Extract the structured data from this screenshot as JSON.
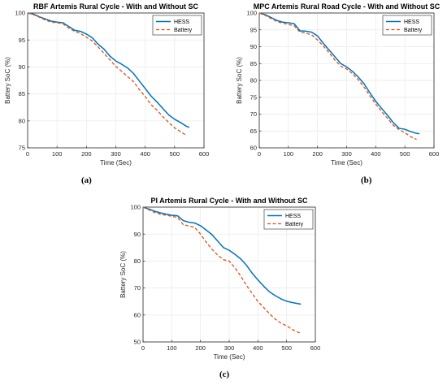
{
  "panel_labels": [
    "(a)",
    "(b)",
    "(c)"
  ],
  "colors": {
    "hess": "#0072BD",
    "battery": "#D95319",
    "axis": "#262626",
    "grid": "#e8e8e8"
  },
  "chart_data": [
    {
      "type": "line",
      "title": "RBF Artemis Rural Cycle - With and Without SC",
      "xlabel": "Time (Sec)",
      "ylabel": "Battery SoC (%)",
      "xlim": [
        0,
        600
      ],
      "ylim": [
        75,
        100
      ],
      "xticks": [
        0,
        100,
        200,
        300,
        400,
        500,
        600
      ],
      "yticks": [
        75,
        80,
        85,
        90,
        95,
        100
      ],
      "legend_position": "top-right",
      "series": [
        {
          "name": "HESS",
          "style": "solid",
          "x": [
            0,
            20,
            40,
            60,
            80,
            100,
            120,
            140,
            160,
            180,
            200,
            220,
            240,
            260,
            280,
            300,
            320,
            340,
            360,
            380,
            400,
            420,
            440,
            460,
            480,
            500,
            520,
            540,
            550
          ],
          "y": [
            100,
            99.8,
            99.3,
            98.9,
            98.5,
            98.3,
            98.2,
            97.5,
            96.8,
            96.6,
            96.1,
            95.4,
            94.2,
            93.3,
            92.0,
            91.1,
            90.5,
            89.8,
            88.8,
            87.4,
            86.0,
            84.6,
            83.5,
            82.3,
            81.1,
            80.3,
            79.7,
            79.0,
            78.8
          ]
        },
        {
          "name": "Battery",
          "style": "dashed",
          "x": [
            0,
            20,
            40,
            60,
            80,
            100,
            120,
            140,
            160,
            180,
            200,
            220,
            240,
            260,
            280,
            300,
            320,
            340,
            360,
            380,
            400,
            420,
            440,
            460,
            480,
            500,
            520,
            540
          ],
          "y": [
            100,
            99.7,
            99.2,
            98.7,
            98.3,
            98.2,
            98.0,
            97.2,
            96.6,
            96.2,
            95.5,
            94.8,
            93.7,
            92.5,
            91.3,
            90.1,
            89.2,
            88.2,
            87.3,
            85.8,
            84.5,
            83.0,
            82.0,
            80.8,
            79.7,
            78.7,
            78.0,
            77.3
          ]
        }
      ]
    },
    {
      "type": "line",
      "title": "MPC Artemis Rural Road Cycle -  With and Without SC",
      "xlabel": "Time (Sec)",
      "ylabel": "Battery SoC (%)",
      "xlim": [
        0,
        600
      ],
      "ylim": [
        60,
        100
      ],
      "xticks": [
        0,
        100,
        200,
        300,
        400,
        500,
        600
      ],
      "yticks": [
        60,
        65,
        70,
        75,
        80,
        85,
        90,
        95,
        100
      ],
      "legend_position": "top-right",
      "series": [
        {
          "name": "HESS",
          "style": "solid",
          "x": [
            0,
            20,
            40,
            60,
            80,
            100,
            120,
            140,
            160,
            180,
            200,
            220,
            240,
            260,
            280,
            300,
            320,
            340,
            360,
            380,
            400,
            420,
            440,
            460,
            480,
            500,
            520,
            540,
            550
          ],
          "y": [
            100,
            99.5,
            98.7,
            97.8,
            97.3,
            97.1,
            96.8,
            94.7,
            94.6,
            94.3,
            93.2,
            91.0,
            89.0,
            87.0,
            85.0,
            84.0,
            82.7,
            81.0,
            79.0,
            76.3,
            73.8,
            71.7,
            69.7,
            67.5,
            65.8,
            65.5,
            64.8,
            64.3,
            64.2
          ]
        },
        {
          "name": "Battery",
          "style": "dashed",
          "x": [
            0,
            20,
            40,
            60,
            80,
            100,
            120,
            140,
            160,
            180,
            200,
            220,
            240,
            260,
            280,
            300,
            320,
            340,
            360,
            380,
            400,
            420,
            440,
            460,
            480,
            500,
            520,
            540
          ],
          "y": [
            100,
            99.3,
            98.4,
            97.5,
            97.0,
            96.6,
            96.2,
            94.3,
            94.0,
            93.5,
            92.0,
            90.2,
            88.2,
            86.0,
            84.2,
            83.4,
            82.0,
            80.2,
            78.0,
            75.4,
            73.0,
            70.8,
            68.8,
            66.7,
            65.4,
            64.5,
            63.3,
            62.5
          ]
        }
      ]
    },
    {
      "type": "line",
      "title": "PI Artemis Rural Cycle - With and Without SC",
      "xlabel": "Time (Sec)",
      "ylabel": "Battery SoC (%)",
      "xlim": [
        0,
        600
      ],
      "ylim": [
        50,
        100
      ],
      "xticks": [
        0,
        100,
        200,
        300,
        400,
        500,
        600
      ],
      "yticks": [
        50,
        60,
        70,
        80,
        90,
        100
      ],
      "legend_position": "top-right",
      "series": [
        {
          "name": "HESS",
          "style": "solid",
          "x": [
            0,
            20,
            40,
            60,
            80,
            100,
            120,
            140,
            160,
            180,
            200,
            220,
            240,
            260,
            280,
            300,
            320,
            340,
            360,
            380,
            400,
            420,
            440,
            460,
            480,
            500,
            520,
            540,
            550
          ],
          "y": [
            100,
            99.3,
            98.5,
            97.9,
            97.4,
            97.0,
            96.8,
            95.0,
            94.4,
            94.1,
            93.1,
            91.5,
            89.8,
            87.4,
            85.0,
            84.0,
            82.5,
            80.8,
            78.5,
            75.5,
            73.0,
            70.7,
            68.6,
            67.2,
            66.0,
            65.1,
            64.6,
            64.2,
            64.0
          ]
        },
        {
          "name": "Battery",
          "style": "dashed",
          "x": [
            0,
            20,
            40,
            60,
            80,
            100,
            120,
            140,
            160,
            180,
            200,
            220,
            240,
            260,
            280,
            300,
            320,
            340,
            360,
            380,
            400,
            420,
            440,
            460,
            480,
            500,
            520,
            540,
            550
          ],
          "y": [
            100,
            99.0,
            98.0,
            97.4,
            97.0,
            96.6,
            96.2,
            93.5,
            93.0,
            92.5,
            90.0,
            87.0,
            84.4,
            82.2,
            80.5,
            80.0,
            77.5,
            74.5,
            71.0,
            68.0,
            65.0,
            62.8,
            60.5,
            58.5,
            57.0,
            56.0,
            54.6,
            53.6,
            53.2
          ]
        }
      ]
    }
  ]
}
